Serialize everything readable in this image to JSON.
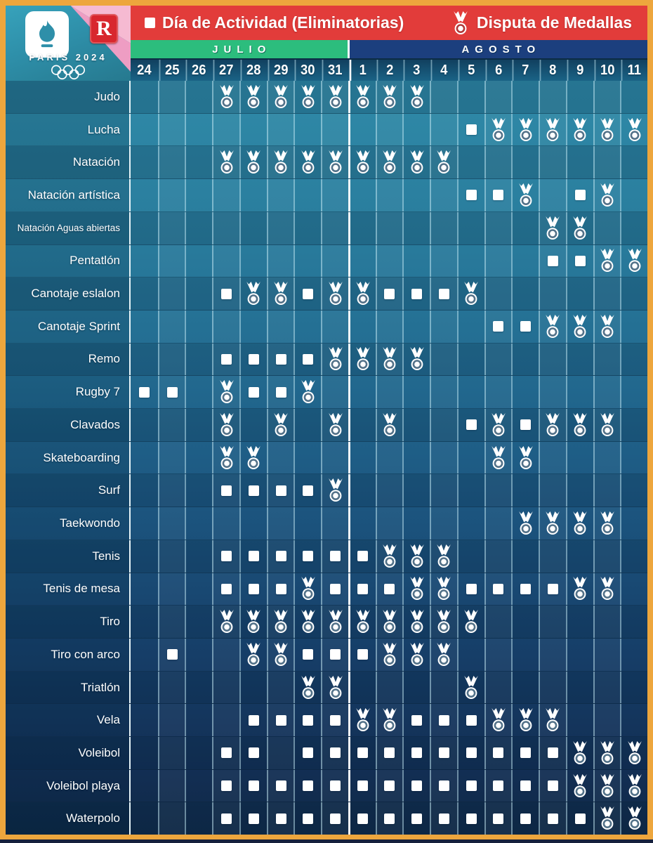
{
  "logo": {
    "brand": "PARIS 2024",
    "badge_letter": "R"
  },
  "legend": {
    "activity_label": "Día de Actividad (Eliminatorias)",
    "medals_label": "Disputa de Medallas"
  },
  "calendar": {
    "months": [
      {
        "label": "JULIO",
        "dates": [
          "24",
          "25",
          "26",
          "27",
          "28",
          "29",
          "30",
          "31"
        ]
      },
      {
        "label": "AGOSTO",
        "dates": [
          "1",
          "2",
          "3",
          "4",
          "5",
          "6",
          "7",
          "8",
          "9",
          "10",
          "11"
        ]
      }
    ]
  },
  "grid": {
    "icon_legend": {
      "s": "activity-square",
      "m": "medal"
    },
    "sports": [
      {
        "name": "Judo",
        "days": [
          "",
          "",
          "",
          "m",
          "m",
          "m",
          "m",
          "m",
          "m",
          "m",
          "m",
          "",
          "",
          "",
          "",
          "",
          "",
          "",
          ""
        ]
      },
      {
        "name": "Lucha",
        "days": [
          "",
          "",
          "",
          "",
          "",
          "",
          "",
          "",
          "",
          "",
          "",
          "",
          "s",
          "m",
          "m",
          "m",
          "m",
          "m",
          "m"
        ]
      },
      {
        "name": "Natación",
        "days": [
          "",
          "",
          "",
          "m",
          "m",
          "m",
          "m",
          "m",
          "m",
          "m",
          "m",
          "m",
          "",
          "",
          "",
          "",
          "",
          "",
          ""
        ]
      },
      {
        "name": "Natación artística",
        "days": [
          "",
          "",
          "",
          "",
          "",
          "",
          "",
          "",
          "",
          "",
          "",
          "",
          "s",
          "s",
          "m",
          "",
          "s",
          "m",
          ""
        ]
      },
      {
        "name": "Natación Aguas abiertas",
        "days": [
          "",
          "",
          "",
          "",
          "",
          "",
          "",
          "",
          "",
          "",
          "",
          "",
          "",
          "",
          "",
          "m",
          "m",
          "",
          ""
        ]
      },
      {
        "name": "Pentatlón",
        "days": [
          "",
          "",
          "",
          "",
          "",
          "",
          "",
          "",
          "",
          "",
          "",
          "",
          "",
          "",
          "",
          "s",
          "s",
          "m",
          "m"
        ]
      },
      {
        "name": "Canotaje eslalon",
        "days": [
          "",
          "",
          "",
          "s",
          "m",
          "m",
          "s",
          "m",
          "m",
          "s",
          "s",
          "s",
          "m",
          "",
          "",
          "",
          "",
          "",
          ""
        ]
      },
      {
        "name": "Canotaje  Sprint",
        "days": [
          "",
          "",
          "",
          "",
          "",
          "",
          "",
          "",
          "",
          "",
          "",
          "",
          "",
          "s",
          "s",
          "m",
          "m",
          "m",
          ""
        ]
      },
      {
        "name": "Remo",
        "days": [
          "",
          "",
          "",
          "s",
          "s",
          "s",
          "s",
          "m",
          "m",
          "m",
          "m",
          "",
          "",
          "",
          "",
          "",
          "",
          "",
          ""
        ]
      },
      {
        "name": "Rugby 7",
        "days": [
          "s",
          "s",
          "",
          "m",
          "s",
          "s",
          "m",
          "",
          "",
          "",
          "",
          "",
          "",
          "",
          "",
          "",
          "",
          "",
          ""
        ]
      },
      {
        "name": "Clavados",
        "days": [
          "",
          "",
          "",
          "m",
          "",
          "m",
          "",
          "m",
          "",
          "m",
          "",
          "",
          "s",
          "m",
          "s",
          "m",
          "m",
          "m",
          ""
        ]
      },
      {
        "name": "Skateboarding",
        "days": [
          "",
          "",
          "",
          "m",
          "m",
          "",
          "",
          "",
          "",
          "",
          "",
          "",
          "",
          "m",
          "m",
          "",
          "",
          "",
          ""
        ]
      },
      {
        "name": "Surf",
        "days": [
          "",
          "",
          "",
          "s",
          "s",
          "s",
          "s",
          "m",
          "",
          "",
          "",
          "",
          "",
          "",
          "",
          "",
          "",
          "",
          ""
        ]
      },
      {
        "name": "Taekwondo",
        "days": [
          "",
          "",
          "",
          "",
          "",
          "",
          "",
          "",
          "",
          "",
          "",
          "",
          "",
          "",
          "m",
          "m",
          "m",
          "m",
          ""
        ]
      },
      {
        "name": "Tenis",
        "days": [
          "",
          "",
          "",
          "s",
          "s",
          "s",
          "s",
          "s",
          "s",
          "m",
          "m",
          "m",
          "",
          "",
          "",
          "",
          "",
          "",
          ""
        ]
      },
      {
        "name": "Tenis de mesa",
        "days": [
          "",
          "",
          "",
          "s",
          "s",
          "s",
          "m",
          "s",
          "s",
          "s",
          "m",
          "m",
          "s",
          "s",
          "s",
          "s",
          "m",
          "m",
          ""
        ]
      },
      {
        "name": "Tiro",
        "days": [
          "",
          "",
          "",
          "m",
          "m",
          "m",
          "m",
          "m",
          "m",
          "m",
          "m",
          "m",
          "m",
          "",
          "",
          "",
          "",
          "",
          ""
        ]
      },
      {
        "name": "Tiro con arco",
        "days": [
          "",
          "s",
          "",
          "",
          "m",
          "m",
          "s",
          "s",
          "s",
          "m",
          "m",
          "m",
          "",
          "",
          "",
          "",
          "",
          "",
          ""
        ]
      },
      {
        "name": "Triatlón",
        "days": [
          "",
          "",
          "",
          "",
          "",
          "",
          "m",
          "m",
          "",
          "",
          "",
          "",
          "m",
          "",
          "",
          "",
          "",
          "",
          ""
        ]
      },
      {
        "name": "Vela",
        "days": [
          "",
          "",
          "",
          "",
          "s",
          "s",
          "s",
          "s",
          "m",
          "m",
          "s",
          "s",
          "s",
          "m",
          "m",
          "m",
          "",
          "",
          ""
        ]
      },
      {
        "name": "Voleibol",
        "days": [
          "",
          "",
          "",
          "s",
          "s",
          "",
          "s",
          "s",
          "s",
          "s",
          "s",
          "s",
          "s",
          "s",
          "s",
          "s",
          "m",
          "m",
          "m"
        ]
      },
      {
        "name": "Voleibol playa",
        "days": [
          "",
          "",
          "",
          "s",
          "s",
          "s",
          "s",
          "s",
          "s",
          "s",
          "s",
          "s",
          "s",
          "s",
          "s",
          "s",
          "m",
          "m",
          "m"
        ]
      },
      {
        "name": "Waterpolo",
        "days": [
          "",
          "",
          "",
          "s",
          "s",
          "s",
          "s",
          "s",
          "s",
          "s",
          "s",
          "s",
          "s",
          "s",
          "s",
          "s",
          "s",
          "m",
          "m"
        ]
      }
    ]
  },
  "colors": {
    "frame_orange": "#EDA63D",
    "header_red": "#E23C3A",
    "julio_green": "#2CBD7D",
    "agosto_navy": "#1C3F7E",
    "pink_light": "#F6BAD2",
    "pink_deep": "#EE9DC3",
    "grid_teal_top": "#2F8AA8",
    "grid_navy_bottom": "#102947",
    "icon_white": "#FFFFFF"
  }
}
